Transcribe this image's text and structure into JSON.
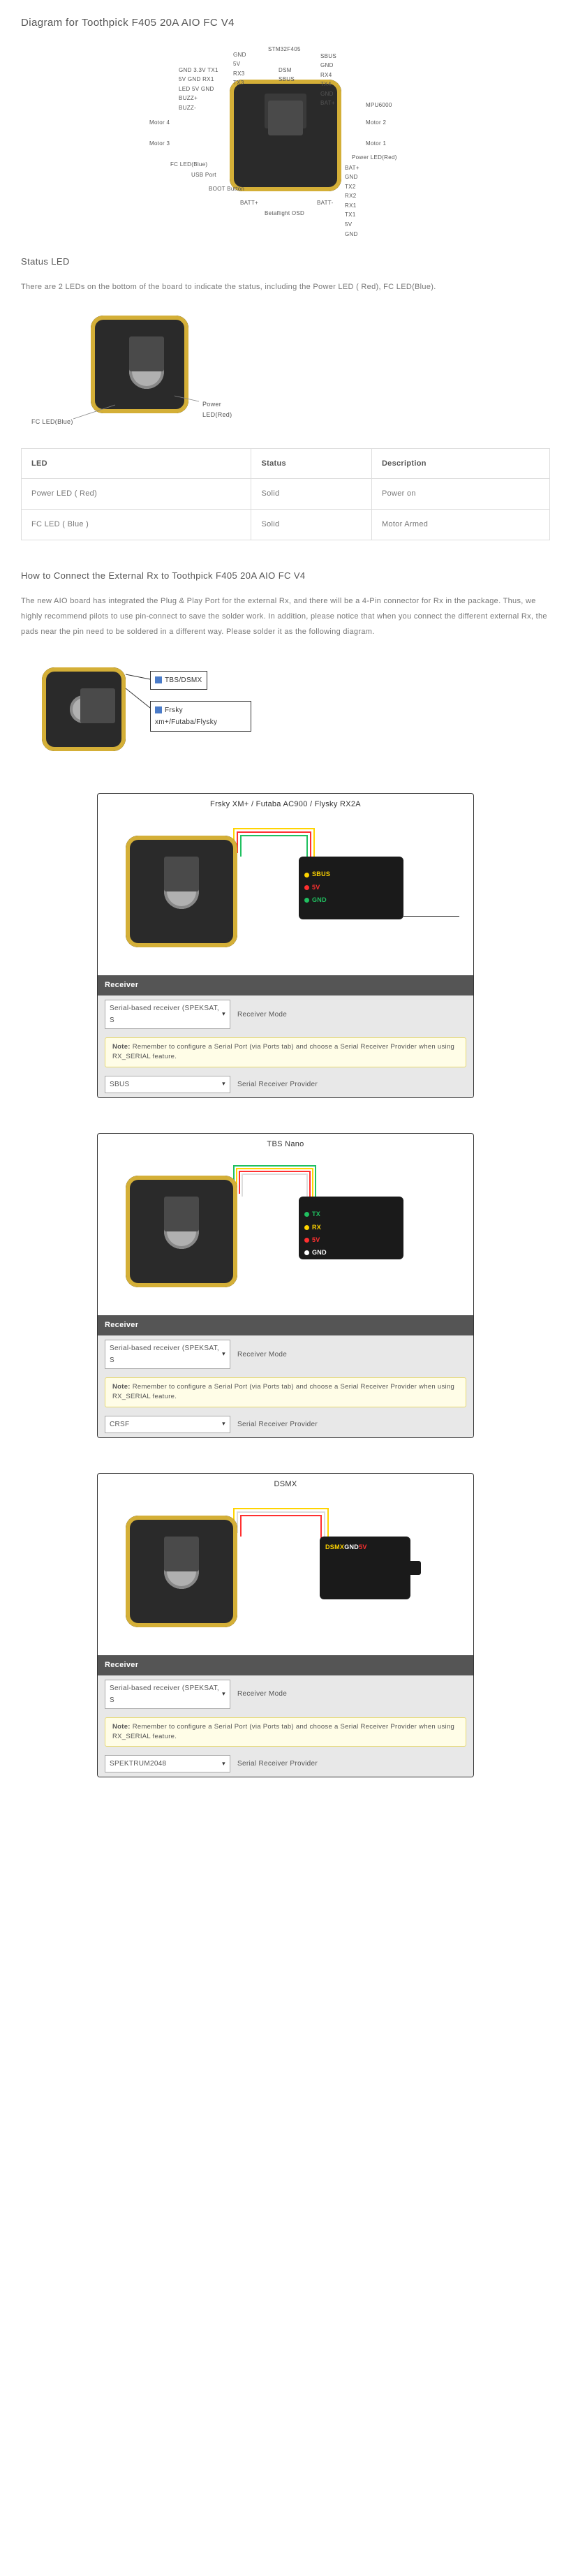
{
  "title_main": "Diagram for Toothpick F405 20A AIO FC V4",
  "main_diagram": {
    "labels_top": [
      "STM32F405",
      "SBUS",
      "GND",
      "RX4",
      "TX4",
      "GND",
      "BAT+"
    ],
    "labels_top_left": [
      "GND",
      "5V",
      "RX3",
      "TX3",
      "DSM",
      "SBUS"
    ],
    "labels_left_block": [
      "GND",
      "3.3V",
      "TX1",
      "5V",
      "GND",
      "RX1",
      "LED",
      "5V",
      "GND",
      "BUZZ+",
      "BUZZ-"
    ],
    "label_motor4": "Motor 4",
    "label_motor3": "Motor 3",
    "label_motor2": "Motor 2",
    "label_motor1": "Motor 1",
    "label_mpu": "MPU6000",
    "label_fcled": "FC LED(Blue)",
    "label_usb": "USB Port",
    "label_boot": "BOOT Button",
    "label_batt_p": "BATT+",
    "label_batt_n": "BATT-",
    "label_osd": "Betaflight OSD",
    "label_power_led": "Power LED(Red)",
    "labels_right_block": [
      "BAT+",
      "GND",
      "TX2",
      "RX2",
      "RX1",
      "TX1",
      "5V",
      "GND"
    ]
  },
  "status_section": {
    "title": "Status LED",
    "desc": "There are 2 LEDs on the bottom of the board to indicate the status, including the Power LED ( Red), FC LED(Blue).",
    "label_fc": "FC LED(Blue)",
    "label_power": "Power LED(Red)"
  },
  "led_table": {
    "headers": [
      "LED",
      "Status",
      "Description"
    ],
    "rows": [
      [
        "Power LED ( Red)",
        "Solid",
        "Power on"
      ],
      [
        "FC LED ( Blue )",
        "Solid",
        "Motor Armed"
      ]
    ]
  },
  "rx_section": {
    "title": "How to Connect the External Rx to Toothpick F405 20A AIO FC V4",
    "desc": "The new AIO board has integrated the Plug & Play Port for the external Rx, and there will be a 4-Pin connector for Rx in the package. Thus, we highly recommend pilots to use pin-connect to save the solder work. In addition, please notice that when you connect the different external Rx, the pads near the pin need to be soldered in a different way. Please solder it as the following diagram.",
    "callout1": "TBS/DSMX",
    "callout2": "Frsky xm+/Futaba/Flysky"
  },
  "wiring_cards": [
    {
      "title": "Frsky XM+ / Futaba AC900 / Flysky RX2A",
      "pins": [
        {
          "color": "#ffd400",
          "label": "SBUS"
        },
        {
          "color": "#ff3030",
          "label": "5V"
        },
        {
          "color": "#20c060",
          "label": "GND"
        }
      ],
      "receiver_mode_value": "Serial-based receiver (SPEKSAT, S",
      "receiver_mode_label": "Receiver Mode",
      "note_strong": "Note:",
      "note_text": " Remember to configure a Serial Port (via Ports tab) and choose a Serial Receiver Provider when using RX_SERIAL feature.",
      "provider_value": "SBUS",
      "provider_label": "Serial Receiver Provider",
      "antenna": true
    },
    {
      "title": "TBS Nano",
      "pins": [
        {
          "color": "#20c060",
          "label": "TX"
        },
        {
          "color": "#ffd400",
          "label": "RX"
        },
        {
          "color": "#ff3030",
          "label": "5V"
        },
        {
          "color": "#ffffff",
          "label": "GND"
        }
      ],
      "receiver_mode_value": "Serial-based receiver (SPEKSAT, S",
      "receiver_mode_label": "Receiver Mode",
      "note_strong": "Note:",
      "note_text": " Remember to configure a Serial Port (via Ports tab) and choose a Serial Receiver Provider when using RX_SERIAL feature.",
      "provider_value": "CRSF",
      "provider_label": "Serial Receiver Provider",
      "antenna": false
    },
    {
      "title": "DSMX",
      "pins": [
        {
          "color": "#ffd400",
          "label": "DSMX"
        },
        {
          "color": "#ffffff",
          "label": "GND"
        },
        {
          "color": "#ff3030",
          "label": "5V"
        }
      ],
      "receiver_mode_value": "Serial-based receiver (SPEKSAT, S",
      "receiver_mode_label": "Receiver Mode",
      "note_strong": "Note:",
      "note_text": " Remember to configure a Serial Port (via Ports tab) and choose a Serial Receiver Provider when using RX_SERIAL feature.",
      "provider_value": "SPEKTRUM2048",
      "provider_label": "Serial Receiver Provider",
      "antenna": false,
      "dsmx_style": true
    }
  ],
  "receiver_header": "Receiver",
  "colors": {
    "board_bg": "#2a2a2a",
    "gold": "#d4af37",
    "wire_red": "#ff3030",
    "wire_green": "#20c060",
    "wire_yellow": "#ffd400",
    "wire_white": "#dddddd"
  }
}
